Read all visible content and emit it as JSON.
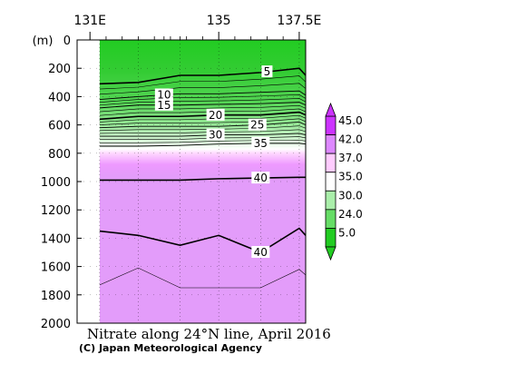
{
  "chart_data": {
    "type": "heatmap",
    "title": "Nitrate along 24°N line, April 2016",
    "credit": "(C) Japan Meteorological Agency",
    "ylabel": "(m)",
    "x_ticks": [
      {
        "label": "131E",
        "lon": 131.0
      },
      {
        "label": "135",
        "lon": 135.0
      },
      {
        "label": "137.5E",
        "lon": 137.5
      }
    ],
    "xlim": [
      130.6,
      137.7
    ],
    "data_xlim": [
      131.3,
      137.7
    ],
    "y_ticks": [
      0,
      200,
      400,
      600,
      800,
      1000,
      1200,
      1400,
      1600,
      1800,
      2000
    ],
    "ylim": [
      0,
      2000
    ],
    "station_lons": [
      131.3,
      132.5,
      133.8,
      135.0,
      136.3,
      137.5
    ],
    "contours": [
      {
        "value": 5,
        "label": "5",
        "label_lon": 136.5,
        "depths": [
          310,
          300,
          250,
          250,
          230,
          200,
          250
        ]
      },
      {
        "value": 10,
        "label": "10",
        "label_lon": 133.3,
        "depths": [
          420,
          400,
          380,
          380,
          370,
          360,
          390
        ]
      },
      {
        "value": 15,
        "label": "15",
        "label_lon": 133.3,
        "depths": [
          480,
          460,
          460,
          455,
          450,
          440,
          460
        ]
      },
      {
        "value": 20,
        "label": "20",
        "label_lon": 134.9,
        "depths": [
          560,
          540,
          540,
          530,
          530,
          510,
          530
        ]
      },
      {
        "value": 25,
        "label": "25",
        "label_lon": 136.2,
        "depths": [
          620,
          610,
          610,
          610,
          600,
          580,
          600
        ]
      },
      {
        "value": 30,
        "label": "30",
        "label_lon": 134.9,
        "depths": [
          680,
          680,
          680,
          670,
          670,
          660,
          670
        ]
      },
      {
        "value": 35,
        "label": "35",
        "label_lon": 136.3,
        "depths": [
          750,
          750,
          745,
          735,
          730,
          730,
          735
        ]
      },
      {
        "value": 40,
        "label": "40",
        "label_lon": 136.3,
        "depths": [
          990,
          990,
          990,
          980,
          975,
          970,
          970
        ]
      },
      {
        "value": 40,
        "label": "40",
        "label_lon": 136.3,
        "depths": [
          1350,
          1380,
          1450,
          1380,
          1500,
          1330,
          1380
        ]
      }
    ],
    "colorbar": {
      "labels": [
        "45.0",
        "42.0",
        "37.0",
        "35.0",
        "30.0",
        "24.0",
        "5.0"
      ],
      "colors": [
        "#cc33ff",
        "#dd88ff",
        "#ffccff",
        "#ffffff",
        "#aaeeaa",
        "#66dd66",
        "#22cc22"
      ]
    }
  }
}
